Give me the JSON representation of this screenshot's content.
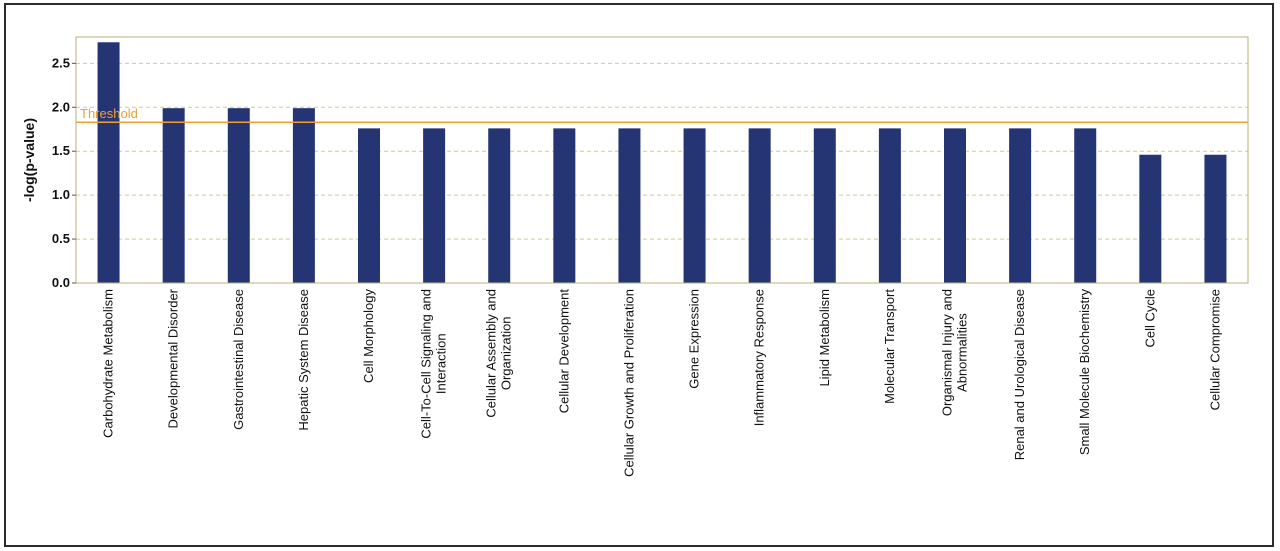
{
  "chart_data": {
    "type": "bar",
    "title": "",
    "xlabel": "",
    "ylabel": "-log(p-value)",
    "ylim": [
      0,
      2.8
    ],
    "yticks": [
      "0.0",
      "0.5",
      "1.0",
      "1.5",
      "2.0",
      "2.5"
    ],
    "grid": "horizontal dashed",
    "categories": [
      [
        "Carbohydrate Metabolism"
      ],
      [
        "Developmental Disorder"
      ],
      [
        "Gastrointestinal Disease"
      ],
      [
        "Hepatic System Disease"
      ],
      [
        "Cell Morphology"
      ],
      [
        "Cell-To-Cell Signaling and",
        "Interaction"
      ],
      [
        "Cellular Assembly and",
        "Organization"
      ],
      [
        "Cellular Development"
      ],
      [
        "Cellular Growth and Proliferation"
      ],
      [
        "Gene Expression"
      ],
      [
        "Inflammatory Response"
      ],
      [
        "Lipid Metabolism"
      ],
      [
        "Molecular Transport"
      ],
      [
        "Organismal Injury and",
        "Abnormalities"
      ],
      [
        "Renal and Urological Disease"
      ],
      [
        "Small Molecule Biochemistry"
      ],
      [
        "Cell Cycle"
      ],
      [
        "Cellular Compromise"
      ]
    ],
    "values": [
      2.74,
      1.99,
      1.99,
      1.99,
      1.76,
      1.76,
      1.76,
      1.76,
      1.76,
      1.76,
      1.76,
      1.76,
      1.76,
      1.76,
      1.76,
      1.76,
      1.46,
      1.46
    ],
    "threshold": {
      "label": "Threshold",
      "value": 1.83
    },
    "colors": {
      "bar": "#253574",
      "threshold": "#f0a030",
      "grid": "#d6cc88",
      "axis": "#b9b27a"
    }
  }
}
